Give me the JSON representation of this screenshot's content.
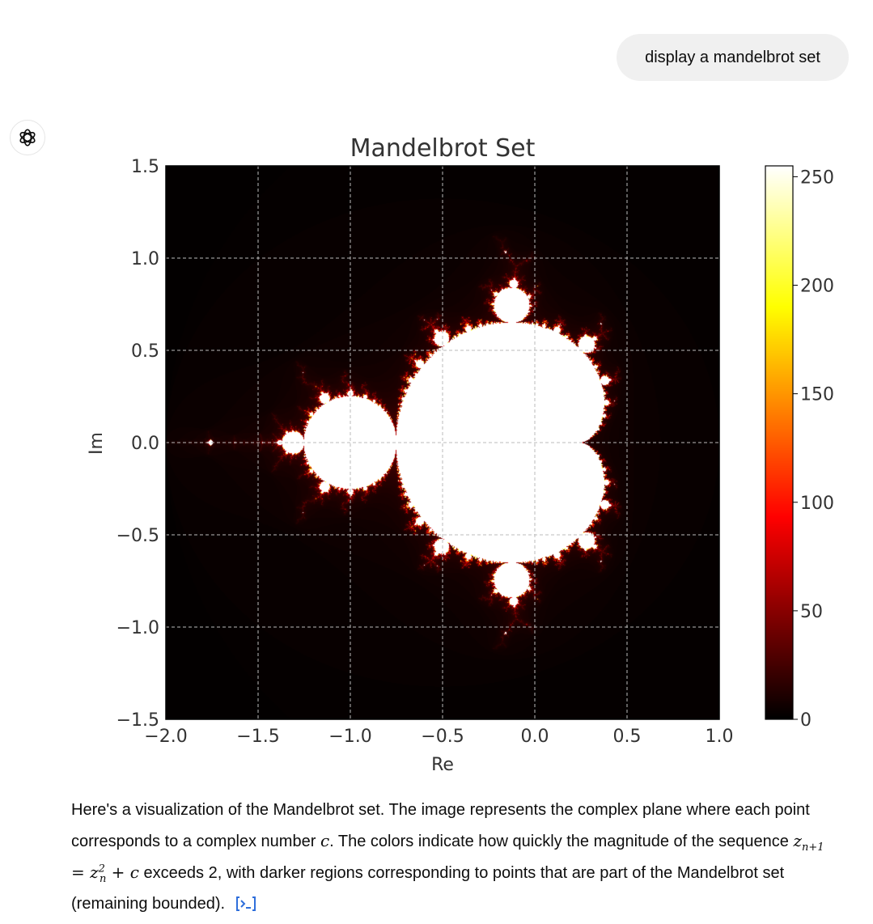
{
  "user_message": "display a mandelbrot set",
  "assistant": {
    "avatar_icon": "openai-logo-icon",
    "caption": {
      "part1": "Here's a visualization of the Mandelbrot set. The image represents the complex plane where each point corresponds to a complex number ",
      "var_c": "c",
      "part2": ". The colors indicate how quickly the magnitude of the sequence ",
      "eq_z": "z",
      "eq_sub1": "n+1",
      "eq_mid": " = z",
      "eq_sup": "2",
      "eq_sub2": "n",
      "eq_end": " + c",
      "part3": " exceeds 2, with darker regions corresponding to points that are part of the Mandelbrot set (remaining bounded).",
      "code_icon": "code-interpreter-icon"
    }
  },
  "chart_data": {
    "type": "heatmap",
    "title": "Mandelbrot Set",
    "xlabel": "Re",
    "ylabel": "Im",
    "xlim": [
      -2.0,
      1.0
    ],
    "ylim": [
      -1.5,
      1.5
    ],
    "xticks": [
      -2.0,
      -1.5,
      -1.0,
      -0.5,
      0.0,
      0.5,
      1.0
    ],
    "xtick_labels": [
      "−2.0",
      "−1.5",
      "−1.0",
      "−0.5",
      "0.0",
      "0.5",
      "1.0"
    ],
    "yticks": [
      1.5,
      1.0,
      0.5,
      0.0,
      -0.5,
      -1.0,
      -1.5
    ],
    "ytick_labels": [
      "1.5",
      "1.0",
      "0.5",
      "0.0",
      "−0.5",
      "−1.0",
      "−1.5"
    ],
    "grid": true,
    "colormap": "hot",
    "max_iter": 256,
    "colorbar": {
      "range": [
        0,
        255
      ],
      "ticks": [
        0,
        50,
        100,
        150,
        200,
        250
      ],
      "tick_labels": [
        "0",
        "50",
        "100",
        "150",
        "200",
        "250"
      ]
    }
  }
}
